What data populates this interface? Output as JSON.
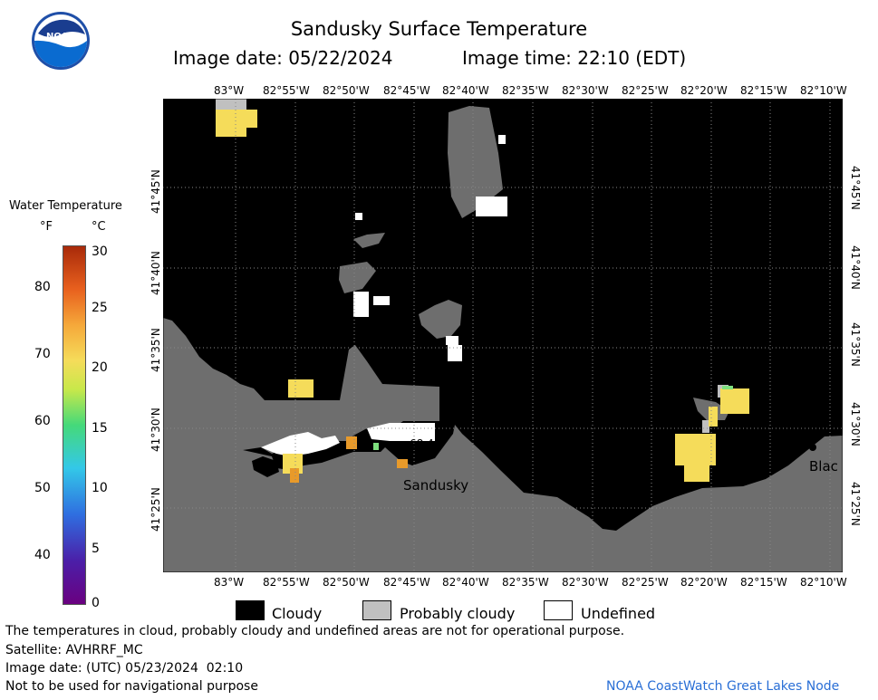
{
  "header": {
    "title": "Sandusky Surface Temperature",
    "image_date": "Image date: 05/22/2024",
    "image_time": "Image time: 22:10 (EDT)"
  },
  "map": {
    "lon_labels": [
      "83°W",
      "82°55'W",
      "82°50'W",
      "82°45'W",
      "82°40'W",
      "82°35'W",
      "82°30'W",
      "82°25'W",
      "82°20'W",
      "82°15'W",
      "82°10'W"
    ],
    "lat_labels": [
      "41°45'N",
      "41°40'N",
      "41°35'N",
      "41°30'N",
      "41°25'N"
    ],
    "places": {
      "city": "Sandusky",
      "partial": "Blac"
    },
    "sample_reading": "68.4"
  },
  "colorbar": {
    "title": "Water Temperature",
    "unit_f": "°F",
    "unit_c": "°C",
    "f_ticks": [
      "80",
      "70",
      "60",
      "50",
      "40"
    ],
    "c_ticks": [
      "30",
      "25",
      "20",
      "15",
      "10",
      "5",
      "0"
    ]
  },
  "legend": {
    "cloudy": "Cloudy",
    "probably_cloudy": "Probably cloudy",
    "undefined": "Undefined",
    "colors": {
      "cloudy": "#000000",
      "probably_cloudy": "#c0c0c0",
      "undefined": "#ffffff",
      "land": "#6e6e6e"
    }
  },
  "footer": {
    "disclaimer": "The temperatures in cloud, probably cloudy and undefined areas are not for operational purpose.",
    "satellite": "Satellite: AVHRRF_MC",
    "utc_date": "Image date: (UTC) 05/23/2024  02:10",
    "nav_warning": "Not to be used for navigational purpose",
    "credit": "NOAA CoastWatch Great Lakes Node"
  },
  "logo": {
    "text": "NOAA"
  }
}
